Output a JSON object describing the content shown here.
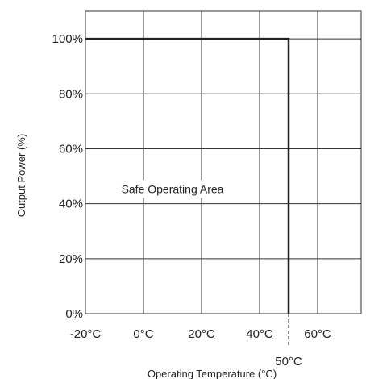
{
  "chart_data": {
    "type": "line",
    "xlabel": "Operating Temperature (°C)",
    "ylabel": "Output Power (%)",
    "xlim": [
      -20,
      75
    ],
    "ylim": [
      0,
      110
    ],
    "grid": true,
    "x_ticks": [
      -20,
      0,
      20,
      40,
      60
    ],
    "x_tick_labels": [
      "-20°C",
      "0°C",
      "20°C",
      "40°C",
      "60°C"
    ],
    "y_ticks": [
      0,
      20,
      40,
      60,
      80,
      100
    ],
    "y_tick_labels": [
      "0%",
      "20%",
      "40%",
      "60%",
      "80%",
      "100%"
    ],
    "series": [
      {
        "x": [
          -20,
          50,
          50
        ],
        "y": [
          100,
          100,
          0
        ]
      }
    ],
    "marker": {
      "x": 50,
      "label": "50°C",
      "style": "dashed"
    },
    "annotation": {
      "text": "Safe Operating Area",
      "x": 10,
      "y": 45
    },
    "colors": {
      "line": "#222222",
      "grid": "#333333",
      "annotation_bg": "#ffffff"
    }
  }
}
